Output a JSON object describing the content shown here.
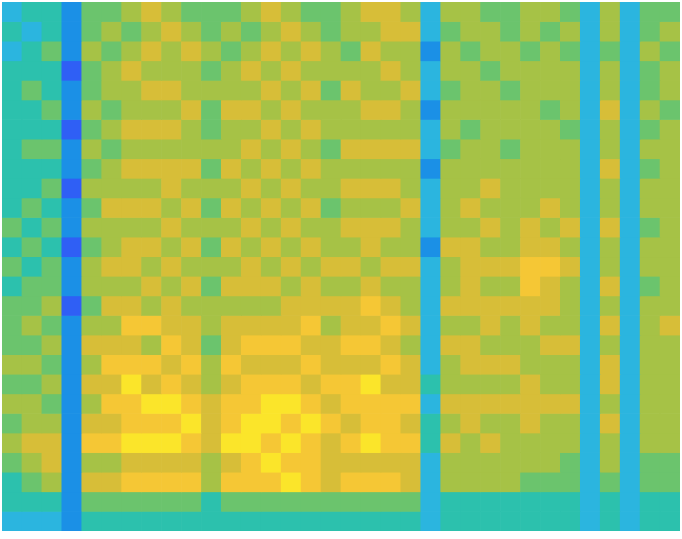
{
  "chart_data": {
    "type": "heatmap",
    "tick_labels": false,
    "grid": false,
    "zlim": [
      0,
      9
    ],
    "cells": [
      [
        3,
        4,
        3,
        4,
        4,
        4,
        4,
        4,
        4,
        4,
        4,
        5,
        4,
        5,
        4,
        5,
        5,
        5,
        6,
        5,
        6,
        5,
        6,
        5,
        4,
        4,
        3
      ],
      [
        4,
        3,
        4,
        4,
        5,
        4,
        4,
        5,
        4,
        4,
        5,
        4,
        5,
        4,
        5,
        5,
        6,
        5,
        6,
        5,
        6,
        6,
        7,
        6,
        5,
        4,
        3
      ],
      [
        4,
        4,
        5,
        4,
        4,
        5,
        4,
        5,
        4,
        5,
        4,
        5,
        4,
        5,
        5,
        6,
        5,
        6,
        5,
        6,
        5,
        6,
        7,
        7,
        6,
        4,
        3
      ],
      [
        2,
        2,
        2,
        1,
        2,
        2,
        1,
        2,
        2,
        1,
        2,
        2,
        1,
        2,
        2,
        1,
        2,
        2,
        2,
        2,
        2,
        2,
        2,
        2,
        2,
        2,
        2
      ],
      [
        5,
        5,
        6,
        5,
        5,
        6,
        5,
        6,
        5,
        6,
        5,
        6,
        5,
        6,
        6,
        5,
        6,
        7,
        6,
        7,
        6,
        7,
        8,
        6,
        7,
        5,
        4
      ],
      [
        5,
        6,
        5,
        6,
        6,
        5,
        6,
        5,
        6,
        6,
        7,
        6,
        6,
        7,
        6,
        7,
        6,
        7,
        8,
        7,
        8,
        7,
        8,
        6,
        7,
        5,
        4
      ],
      [
        6,
        5,
        6,
        7,
        6,
        6,
        7,
        6,
        7,
        6,
        7,
        6,
        7,
        7,
        6,
        7,
        8,
        7,
        8,
        9,
        8,
        8,
        9,
        7,
        8,
        5,
        4
      ],
      [
        7,
        6,
        7,
        6,
        7,
        6,
        7,
        6,
        7,
        6,
        7,
        6,
        7,
        6,
        7,
        6,
        8,
        6,
        8,
        7,
        9,
        8,
        9,
        7,
        8,
        5,
        4
      ],
      [
        6,
        7,
        6,
        6,
        7,
        6,
        7,
        6,
        7,
        7,
        6,
        7,
        6,
        7,
        6,
        7,
        7,
        8,
        7,
        8,
        9,
        8,
        9,
        7,
        8,
        5,
        4
      ],
      [
        5,
        6,
        7,
        6,
        6,
        7,
        6,
        6,
        7,
        6,
        7,
        6,
        7,
        6,
        7,
        6,
        7,
        7,
        8,
        7,
        8,
        9,
        8,
        7,
        8,
        5,
        4
      ],
      [
        5,
        5,
        6,
        5,
        6,
        5,
        5,
        6,
        5,
        6,
        5,
        6,
        5,
        6,
        5,
        6,
        6,
        5,
        6,
        6,
        7,
        7,
        7,
        6,
        6,
        4,
        4
      ],
      [
        5,
        6,
        5,
        6,
        6,
        7,
        6,
        6,
        7,
        6,
        7,
        6,
        7,
        6,
        7,
        6,
        7,
        7,
        8,
        7,
        8,
        8,
        9,
        7,
        8,
        5,
        4
      ],
      [
        6,
        5,
        6,
        7,
        6,
        7,
        6,
        7,
        6,
        7,
        6,
        7,
        6,
        7,
        7,
        6,
        7,
        8,
        7,
        8,
        8,
        9,
        9,
        8,
        8,
        5,
        4
      ],
      [
        7,
        6,
        7,
        6,
        7,
        6,
        7,
        6,
        7,
        6,
        7,
        6,
        7,
        6,
        7,
        6,
        7,
        8,
        7,
        8,
        9,
        9,
        8,
        9,
        8,
        5,
        4
      ],
      [
        6,
        7,
        6,
        7,
        6,
        7,
        6,
        7,
        6,
        7,
        6,
        7,
        6,
        7,
        6,
        7,
        7,
        8,
        7,
        8,
        9,
        8,
        9,
        8,
        9,
        5,
        4
      ],
      [
        5,
        6,
        7,
        6,
        7,
        6,
        7,
        6,
        7,
        6,
        7,
        6,
        7,
        6,
        7,
        7,
        8,
        7,
        8,
        7,
        8,
        9,
        8,
        8,
        8,
        5,
        4
      ],
      [
        5,
        5,
        6,
        6,
        5,
        6,
        6,
        5,
        6,
        6,
        5,
        6,
        6,
        7,
        6,
        7,
        6,
        7,
        7,
        8,
        7,
        8,
        7,
        7,
        7,
        5,
        4
      ],
      [
        6,
        6,
        5,
        6,
        7,
        6,
        6,
        7,
        6,
        7,
        6,
        7,
        6,
        7,
        6,
        7,
        7,
        8,
        7,
        8,
        8,
        7,
        8,
        7,
        8,
        5,
        4
      ],
      [
        7,
        6,
        7,
        6,
        6,
        7,
        6,
        7,
        6,
        7,
        6,
        7,
        7,
        6,
        7,
        8,
        7,
        8,
        7,
        9,
        8,
        8,
        9,
        7,
        8,
        5,
        4
      ],
      [
        7,
        7,
        6,
        7,
        6,
        7,
        6,
        7,
        6,
        7,
        6,
        7,
        6,
        7,
        6,
        7,
        8,
        7,
        8,
        7,
        8,
        8,
        8,
        7,
        8,
        5,
        4
      ],
      [
        6,
        7,
        6,
        6,
        7,
        6,
        6,
        7,
        6,
        6,
        7,
        6,
        6,
        7,
        6,
        6,
        7,
        6,
        7,
        7,
        8,
        7,
        8,
        7,
        7,
        5,
        4
      ],
      [
        3,
        3,
        2,
        3,
        3,
        2,
        3,
        3,
        2,
        3,
        3,
        3,
        2,
        3,
        3,
        3,
        3,
        3,
        3,
        4,
        3,
        4,
        4,
        3,
        3,
        3,
        3
      ],
      [
        6,
        5,
        6,
        6,
        5,
        6,
        6,
        5,
        6,
        6,
        6,
        6,
        7,
        6,
        6,
        7,
        6,
        7,
        6,
        6,
        7,
        6,
        7,
        6,
        6,
        4,
        4
      ],
      [
        6,
        6,
        5,
        6,
        6,
        6,
        5,
        6,
        6,
        6,
        7,
        6,
        7,
        7,
        7,
        7,
        6,
        7,
        7,
        6,
        7,
        7,
        6,
        6,
        6,
        4,
        4
      ],
      [
        5,
        6,
        6,
        5,
        6,
        6,
        6,
        6,
        6,
        7,
        6,
        7,
        6,
        7,
        6,
        7,
        7,
        6,
        7,
        6,
        7,
        6,
        7,
        6,
        6,
        4,
        4
      ],
      [
        5,
        5,
        6,
        6,
        5,
        6,
        6,
        5,
        6,
        6,
        6,
        6,
        6,
        7,
        6,
        7,
        6,
        6,
        7,
        6,
        7,
        6,
        6,
        6,
        6,
        4,
        4
      ],
      [
        6,
        6,
        5,
        6,
        6,
        6,
        6,
        6,
        6,
        6,
        6,
        7,
        7,
        8,
        8,
        7,
        7,
        6,
        6,
        7,
        7,
        7,
        6,
        6,
        5,
        4,
        4
      ],
      [
        6,
        5,
        6,
        6,
        6,
        5,
        6,
        6,
        6,
        6,
        7,
        6,
        7,
        8,
        7,
        7,
        6,
        7,
        6,
        6,
        7,
        6,
        6,
        6,
        5,
        4,
        4
      ],
      [
        5,
        6,
        5,
        6,
        6,
        6,
        5,
        6,
        6,
        6,
        6,
        7,
        6,
        7,
        6,
        6,
        6,
        7,
        6,
        6,
        7,
        6,
        6,
        5,
        5,
        4,
        4
      ],
      [
        3,
        3,
        3,
        3,
        3,
        3,
        3,
        3,
        3,
        3,
        3,
        3,
        3,
        3,
        3,
        3,
        3,
        3,
        3,
        3,
        3,
        3,
        3,
        3,
        3,
        3,
        3
      ],
      [
        6,
        6,
        5,
        6,
        6,
        7,
        6,
        6,
        7,
        6,
        6,
        7,
        6,
        6,
        7,
        6,
        7,
        6,
        7,
        7,
        6,
        7,
        6,
        6,
        5,
        4,
        4
      ],
      [
        3,
        3,
        3,
        3,
        3,
        3,
        3,
        3,
        3,
        3,
        3,
        3,
        3,
        3,
        3,
        3,
        3,
        3,
        3,
        3,
        3,
        3,
        3,
        3,
        3,
        3,
        3
      ],
      [
        5,
        5,
        6,
        5,
        5,
        6,
        5,
        6,
        5,
        6,
        6,
        5,
        6,
        6,
        5,
        6,
        6,
        6,
        6,
        6,
        6,
        6,
        6,
        5,
        5,
        4,
        4
      ],
      [
        5,
        6,
        5,
        6,
        6,
        5,
        6,
        6,
        6,
        6,
        6,
        6,
        6,
        6,
        6,
        6,
        7,
        6,
        6,
        6,
        6,
        6,
        6,
        5,
        5,
        4,
        4
      ]
    ]
  }
}
